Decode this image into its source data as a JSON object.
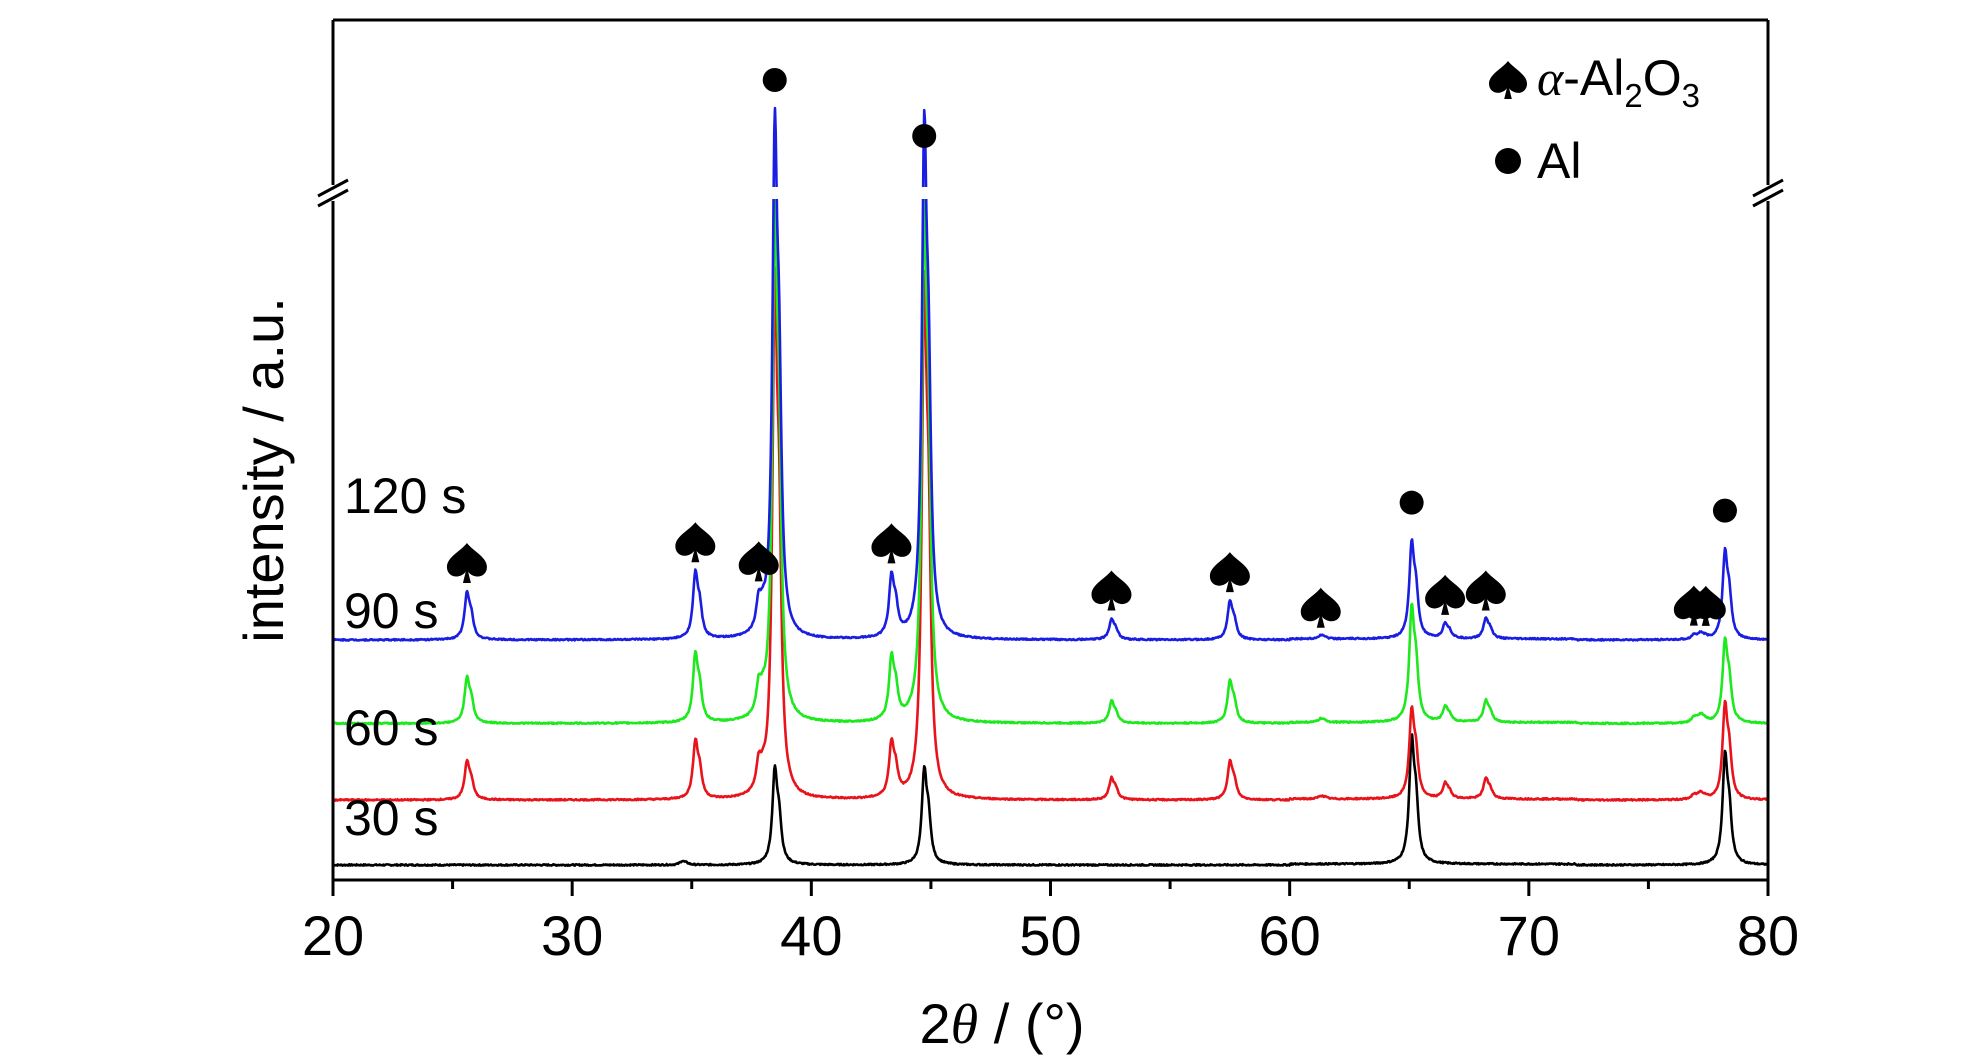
{
  "chart_data": {
    "type": "line",
    "xlabel_prefix": "2",
    "xlabel_symbol": "θ",
    "xlabel_suffix": " / (°)",
    "ylabel": "intensity / a.u.",
    "xlim": [
      20,
      80
    ],
    "x_ticks": [
      20,
      30,
      40,
      50,
      60,
      70,
      80
    ],
    "y_axis_break": true,
    "legend_position": "top-right",
    "legend": {
      "alpha": {
        "marker": "spade-icon",
        "greek": "α",
        "text_a": "-Al",
        "sub_a": "2",
        "text_b": "O",
        "sub_b": "3"
      },
      "al": {
        "marker": "filled-circle",
        "text": "Al"
      }
    },
    "series": [
      {
        "name": "30 s",
        "color": "#000000",
        "baseline": 0,
        "tall_peaks": false,
        "peaks": [
          [
            34.6,
            0.3
          ],
          [
            38.47,
            7.5
          ],
          [
            44.72,
            7.5
          ],
          [
            65.1,
            9.8
          ],
          [
            78.2,
            8.6
          ]
        ]
      },
      {
        "name": "60 s",
        "color": "#e8141b",
        "baseline": 5.6,
        "tall_peaks": true,
        "peaks": [
          [
            25.6,
            3.0
          ],
          [
            35.15,
            4.6
          ],
          [
            37.8,
            2.2
          ],
          [
            38.47,
            40
          ],
          [
            43.35,
            4.3
          ],
          [
            44.72,
            40
          ],
          [
            52.55,
            1.7
          ],
          [
            57.5,
            3.0
          ],
          [
            61.3,
            0.25
          ],
          [
            65.1,
            7.0
          ],
          [
            66.5,
            1.2
          ],
          [
            68.2,
            1.6
          ],
          [
            76.9,
            0.35
          ],
          [
            77.2,
            0.45
          ],
          [
            78.2,
            7.5
          ]
        ]
      },
      {
        "name": "90 s",
        "color": "#1ee81e",
        "baseline": 12.2,
        "tall_peaks": true,
        "peaks": [
          [
            25.6,
            3.6
          ],
          [
            35.15,
            5.4
          ],
          [
            37.8,
            2.3
          ],
          [
            38.47,
            40
          ],
          [
            43.35,
            5.0
          ],
          [
            44.72,
            40
          ],
          [
            52.55,
            1.7
          ],
          [
            57.5,
            3.3
          ],
          [
            61.3,
            0.3
          ],
          [
            65.1,
            9.0
          ],
          [
            66.5,
            1.2
          ],
          [
            68.2,
            1.7
          ],
          [
            76.9,
            0.45
          ],
          [
            77.2,
            0.55
          ],
          [
            78.2,
            6.5
          ]
        ]
      },
      {
        "name": "120 s",
        "color": "#1a1ee0",
        "baseline": 19.4,
        "tall_peaks": true,
        "peaks": [
          [
            25.6,
            3.7
          ],
          [
            35.15,
            5.2
          ],
          [
            37.8,
            2.4
          ],
          [
            38.47,
            40
          ],
          [
            43.35,
            4.8
          ],
          [
            44.72,
            40
          ],
          [
            52.55,
            1.6
          ],
          [
            57.5,
            3.0
          ],
          [
            61.3,
            0.3
          ],
          [
            65.1,
            7.5
          ],
          [
            66.5,
            1.2
          ],
          [
            68.2,
            1.6
          ],
          [
            76.9,
            0.35
          ],
          [
            77.2,
            0.4
          ],
          [
            78.2,
            6.9
          ]
        ]
      }
    ],
    "annotations": [
      {
        "type": "spade",
        "x": 25.6
      },
      {
        "type": "spade",
        "x": 35.15
      },
      {
        "type": "spade",
        "x": 37.8
      },
      {
        "type": "circle",
        "x": 38.47
      },
      {
        "type": "spade",
        "x": 43.35
      },
      {
        "type": "circle",
        "x": 44.72
      },
      {
        "type": "spade",
        "x": 52.55
      },
      {
        "type": "spade",
        "x": 57.5
      },
      {
        "type": "spade",
        "x": 61.3
      },
      {
        "type": "circle",
        "x": 65.1
      },
      {
        "type": "spade",
        "x": 66.5
      },
      {
        "type": "spade",
        "x": 68.2
      },
      {
        "type": "spade",
        "x": 76.9
      },
      {
        "type": "spade",
        "x": 77.4
      },
      {
        "type": "circle",
        "x": 78.2
      }
    ]
  }
}
